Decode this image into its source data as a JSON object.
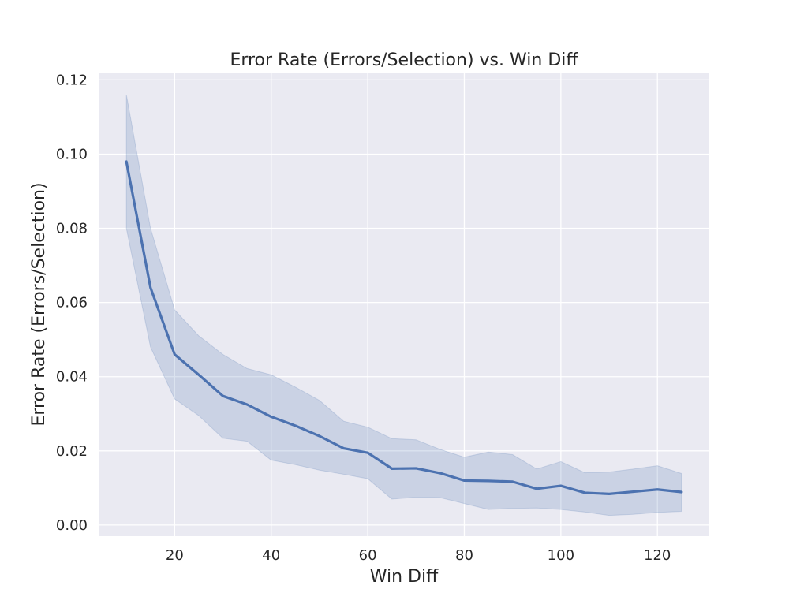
{
  "chart_data": {
    "type": "line",
    "title": "Error Rate (Errors/Selection) vs. Win Diff",
    "xlabel": "Win Diff",
    "ylabel": "Error Rate (Errors/Selection)",
    "xlim": [
      4.25,
      130.75
    ],
    "ylim": [
      -0.003,
      0.122
    ],
    "xticks": [
      20,
      40,
      60,
      80,
      100,
      120
    ],
    "yticks": [
      0.0,
      0.02,
      0.04,
      0.06,
      0.08,
      0.1,
      0.12
    ],
    "xtick_labels": [
      "20",
      "40",
      "60",
      "80",
      "100",
      "120"
    ],
    "ytick_labels": [
      "0.00",
      "0.02",
      "0.04",
      "0.06",
      "0.08",
      "0.10",
      "0.12"
    ],
    "grid": true,
    "legend": "none",
    "colors": {
      "background": "#eaeaf2",
      "grid": "#ffffff",
      "line": "#4c72b0",
      "band": "#4c72b0"
    },
    "series": [
      {
        "x": [
          10,
          15,
          20,
          25,
          30,
          35,
          40,
          45,
          50,
          55,
          60,
          65,
          70,
          75,
          80,
          85,
          90,
          95,
          100,
          105,
          110,
          115,
          120,
          125
        ],
        "values": [
          0.098,
          0.064,
          0.046,
          0.0405,
          0.0348,
          0.0325,
          0.0292,
          0.0268,
          0.024,
          0.0207,
          0.0195,
          0.0152,
          0.0153,
          0.014,
          0.012,
          0.0119,
          0.0117,
          0.0098,
          0.0106,
          0.0087,
          0.0084,
          0.009,
          0.0096,
          0.0089
        ],
        "ci_lower": [
          0.08,
          0.048,
          0.034,
          0.0295,
          0.0234,
          0.0226,
          0.0175,
          0.0163,
          0.0148,
          0.0137,
          0.0125,
          0.007,
          0.0075,
          0.0074,
          0.0058,
          0.0042,
          0.0045,
          0.0046,
          0.0042,
          0.0035,
          0.0026,
          0.0029,
          0.0034,
          0.0037
        ],
        "ci_upper": [
          0.116,
          0.08,
          0.058,
          0.051,
          0.046,
          0.0422,
          0.0405,
          0.0372,
          0.0336,
          0.028,
          0.0264,
          0.0233,
          0.023,
          0.0204,
          0.0183,
          0.0197,
          0.019,
          0.0151,
          0.0171,
          0.0141,
          0.0143,
          0.0151,
          0.016,
          0.0139
        ]
      }
    ]
  }
}
